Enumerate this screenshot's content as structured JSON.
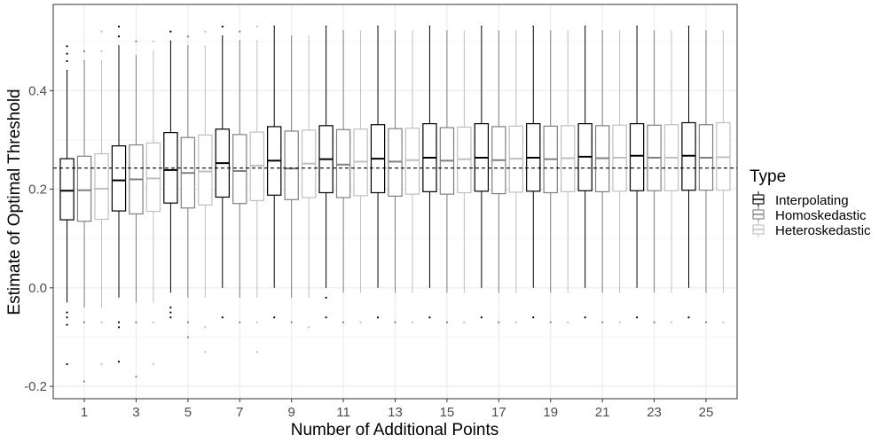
{
  "chart_data": {
    "type": "boxplot",
    "xlabel": "Number of Additional Points",
    "ylabel": "Estimate of Optimal Threshold",
    "categories": [
      1,
      3,
      5,
      7,
      9,
      11,
      13,
      15,
      17,
      19,
      21,
      23,
      25
    ],
    "ylim": [
      -0.225,
      0.575
    ],
    "y_ticks": [
      -0.2,
      0.0,
      0.2,
      0.4
    ],
    "y_tick_labels": [
      "-0.2",
      "0.0",
      "0.2",
      "0.4"
    ],
    "reference_line": {
      "y": 0.243,
      "style": "dashed"
    },
    "grid": true,
    "legend": {
      "title": "Type",
      "position": "right",
      "entries": [
        "Interpolating",
        "Homoskedastic",
        "Heteroskedastic"
      ]
    },
    "series": [
      {
        "name": "Interpolating",
        "color": "#000000",
        "boxes": [
          {
            "whisker_low": -0.03,
            "q1": 0.138,
            "median": 0.197,
            "q3": 0.262,
            "whisker_high": 0.44,
            "outliers": [
              -0.05,
              -0.06,
              -0.075,
              -0.155,
              0.46,
              0.475,
              0.49
            ]
          },
          {
            "whisker_low": -0.02,
            "q1": 0.156,
            "median": 0.218,
            "q3": 0.288,
            "whisker_high": 0.49,
            "outliers": [
              -0.07,
              -0.08,
              -0.15,
              0.51,
              0.53
            ]
          },
          {
            "whisker_low": -0.01,
            "q1": 0.172,
            "median": 0.239,
            "q3": 0.315,
            "whisker_high": 0.5,
            "outliers": [
              -0.04,
              -0.05,
              -0.06,
              0.52
            ]
          },
          {
            "whisker_low": 0.0,
            "q1": 0.184,
            "median": 0.253,
            "q3": 0.322,
            "whisker_high": 0.51,
            "outliers": [
              -0.06,
              0.53
            ]
          },
          {
            "whisker_low": 0.0,
            "q1": 0.188,
            "median": 0.258,
            "q3": 0.327,
            "whisker_high": 0.53,
            "outliers": [
              -0.06
            ]
          },
          {
            "whisker_low": 0.0,
            "q1": 0.193,
            "median": 0.261,
            "q3": 0.329,
            "whisker_high": 0.53,
            "outliers": [
              -0.02,
              -0.06
            ]
          },
          {
            "whisker_low": 0.0,
            "q1": 0.193,
            "median": 0.262,
            "q3": 0.331,
            "whisker_high": 0.53,
            "outliers": [
              -0.06
            ]
          },
          {
            "whisker_low": 0.0,
            "q1": 0.195,
            "median": 0.264,
            "q3": 0.333,
            "whisker_high": 0.53,
            "outliers": [
              -0.06
            ]
          },
          {
            "whisker_low": 0.0,
            "q1": 0.196,
            "median": 0.264,
            "q3": 0.333,
            "whisker_high": 0.53,
            "outliers": [
              -0.06
            ]
          },
          {
            "whisker_low": 0.0,
            "q1": 0.196,
            "median": 0.264,
            "q3": 0.333,
            "whisker_high": 0.53,
            "outliers": [
              -0.06
            ]
          },
          {
            "whisker_low": 0.0,
            "q1": 0.197,
            "median": 0.266,
            "q3": 0.333,
            "whisker_high": 0.53,
            "outliers": [
              -0.06
            ]
          },
          {
            "whisker_low": 0.0,
            "q1": 0.197,
            "median": 0.268,
            "q3": 0.333,
            "whisker_high": 0.53,
            "outliers": [
              -0.06
            ]
          },
          {
            "whisker_low": 0.0,
            "q1": 0.198,
            "median": 0.268,
            "q3": 0.335,
            "whisker_high": 0.53,
            "outliers": [
              -0.06
            ]
          }
        ]
      },
      {
        "name": "Homoskedastic",
        "color": "#7f7f7f",
        "boxes": [
          {
            "whisker_low": -0.04,
            "q1": 0.135,
            "median": 0.198,
            "q3": 0.267,
            "whisker_high": 0.46,
            "outliers": [
              -0.07,
              -0.19,
              0.48
            ]
          },
          {
            "whisker_low": -0.03,
            "q1": 0.15,
            "median": 0.22,
            "q3": 0.29,
            "whisker_high": 0.47,
            "outliers": [
              -0.07,
              -0.18,
              0.5
            ]
          },
          {
            "whisker_low": -0.02,
            "q1": 0.162,
            "median": 0.233,
            "q3": 0.305,
            "whisker_high": 0.49,
            "outliers": [
              -0.07,
              -0.1,
              0.51
            ]
          },
          {
            "whisker_low": -0.02,
            "q1": 0.171,
            "median": 0.237,
            "q3": 0.311,
            "whisker_high": 0.5,
            "outliers": [
              -0.07,
              0.52
            ]
          },
          {
            "whisker_low": -0.02,
            "q1": 0.179,
            "median": 0.242,
            "q3": 0.318,
            "whisker_high": 0.51,
            "outliers": [
              -0.07
            ]
          },
          {
            "whisker_low": -0.01,
            "q1": 0.183,
            "median": 0.25,
            "q3": 0.321,
            "whisker_high": 0.52,
            "outliers": [
              -0.07
            ]
          },
          {
            "whisker_low": -0.01,
            "q1": 0.186,
            "median": 0.256,
            "q3": 0.323,
            "whisker_high": 0.52,
            "outliers": [
              -0.07
            ]
          },
          {
            "whisker_low": -0.01,
            "q1": 0.19,
            "median": 0.258,
            "q3": 0.325,
            "whisker_high": 0.52,
            "outliers": [
              -0.07
            ]
          },
          {
            "whisker_low": -0.01,
            "q1": 0.191,
            "median": 0.259,
            "q3": 0.327,
            "whisker_high": 0.52,
            "outliers": [
              -0.07
            ]
          },
          {
            "whisker_low": -0.01,
            "q1": 0.193,
            "median": 0.261,
            "q3": 0.328,
            "whisker_high": 0.52,
            "outliers": [
              -0.07
            ]
          },
          {
            "whisker_low": -0.01,
            "q1": 0.195,
            "median": 0.263,
            "q3": 0.329,
            "whisker_high": 0.52,
            "outliers": [
              -0.07
            ]
          },
          {
            "whisker_low": -0.01,
            "q1": 0.197,
            "median": 0.264,
            "q3": 0.33,
            "whisker_high": 0.52,
            "outliers": [
              -0.07
            ]
          },
          {
            "whisker_low": -0.01,
            "q1": 0.198,
            "median": 0.264,
            "q3": 0.331,
            "whisker_high": 0.52,
            "outliers": [
              -0.07
            ]
          }
        ]
      },
      {
        "name": "Heteroskedastic",
        "color": "#bfbfbf",
        "boxes": [
          {
            "whisker_low": -0.04,
            "q1": 0.139,
            "median": 0.201,
            "q3": 0.272,
            "whisker_high": 0.46,
            "outliers": [
              -0.07,
              -0.155,
              0.48,
              0.52
            ]
          },
          {
            "whisker_low": -0.03,
            "q1": 0.155,
            "median": 0.222,
            "q3": 0.294,
            "whisker_high": 0.48,
            "outliers": [
              -0.07,
              -0.155,
              0.5
            ]
          },
          {
            "whisker_low": -0.02,
            "q1": 0.168,
            "median": 0.236,
            "q3": 0.31,
            "whisker_high": 0.49,
            "outliers": [
              -0.08,
              -0.13,
              0.52
            ]
          },
          {
            "whisker_low": -0.02,
            "q1": 0.177,
            "median": 0.248,
            "q3": 0.316,
            "whisker_high": 0.5,
            "outliers": [
              -0.07,
              -0.13,
              0.53
            ]
          },
          {
            "whisker_low": -0.02,
            "q1": 0.183,
            "median": 0.252,
            "q3": 0.32,
            "whisker_high": 0.51,
            "outliers": [
              -0.08
            ]
          },
          {
            "whisker_low": -0.01,
            "q1": 0.187,
            "median": 0.256,
            "q3": 0.322,
            "whisker_high": 0.52,
            "outliers": [
              -0.07
            ]
          },
          {
            "whisker_low": -0.01,
            "q1": 0.19,
            "median": 0.259,
            "q3": 0.324,
            "whisker_high": 0.52,
            "outliers": [
              -0.07
            ]
          },
          {
            "whisker_low": -0.01,
            "q1": 0.193,
            "median": 0.261,
            "q3": 0.326,
            "whisker_high": 0.52,
            "outliers": [
              -0.07
            ]
          },
          {
            "whisker_low": -0.01,
            "q1": 0.194,
            "median": 0.262,
            "q3": 0.328,
            "whisker_high": 0.52,
            "outliers": [
              -0.07
            ]
          },
          {
            "whisker_low": -0.01,
            "q1": 0.195,
            "median": 0.263,
            "q3": 0.329,
            "whisker_high": 0.52,
            "outliers": [
              -0.07
            ]
          },
          {
            "whisker_low": -0.01,
            "q1": 0.196,
            "median": 0.264,
            "q3": 0.33,
            "whisker_high": 0.52,
            "outliers": [
              -0.07
            ]
          },
          {
            "whisker_low": -0.01,
            "q1": 0.197,
            "median": 0.264,
            "q3": 0.331,
            "whisker_high": 0.52,
            "outliers": [
              -0.07
            ]
          },
          {
            "whisker_low": -0.01,
            "q1": 0.198,
            "median": 0.265,
            "q3": 0.335,
            "whisker_high": 0.52,
            "outliers": [
              -0.07
            ]
          }
        ]
      }
    ]
  }
}
